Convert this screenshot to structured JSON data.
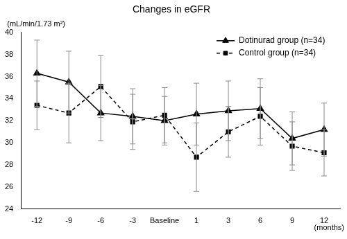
{
  "chart_data": {
    "type": "line",
    "title": "Changes in eGFR",
    "y_label": "(mL/min/1.73 m²)",
    "x_label": "(months)",
    "categories": [
      "-12",
      "-9",
      "-6",
      "-3",
      "Baseline",
      "1",
      "3",
      "6",
      "9",
      "12"
    ],
    "series": [
      {
        "name": "Dotinurad group (n=34)",
        "color": "#000000",
        "marker": "triangle",
        "line_style": "solid",
        "values": [
          36.3,
          35.5,
          32.7,
          32.4,
          32.0,
          32.6,
          32.9,
          33.1,
          30.4,
          31.2
        ],
        "errors": [
          3.0,
          2.8,
          2.5,
          2.5,
          2.2,
          2.8,
          2.7,
          2.7,
          2.4,
          2.4
        ]
      },
      {
        "name": "Control group (n=34)",
        "color": "#000000",
        "marker": "square",
        "line_style": "dashed",
        "values": [
          33.4,
          32.7,
          35.1,
          31.9,
          32.5,
          28.7,
          31.0,
          32.4,
          29.7,
          29.1
        ],
        "errors": [
          2.2,
          2.7,
          2.8,
          2.5,
          2.5,
          3.1,
          2.3,
          2.6,
          2.2,
          2.1
        ]
      }
    ],
    "ylim": [
      24,
      40
    ],
    "yticks": [
      24,
      26,
      28,
      30,
      32,
      34,
      36,
      38,
      40
    ],
    "grid": false,
    "legend": "top-right"
  }
}
